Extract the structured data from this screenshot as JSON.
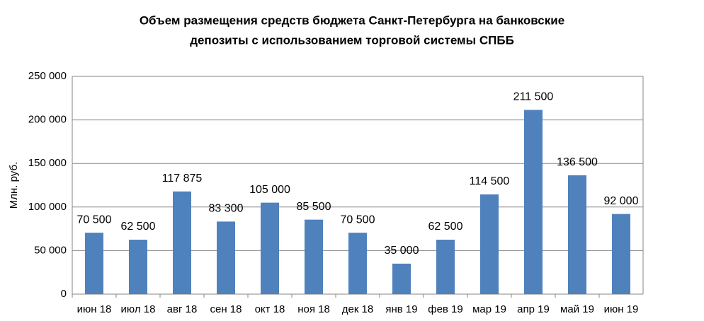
{
  "chart_data": {
    "type": "bar",
    "title": [
      "Объем размещения средств бюджета Санкт-Петербурга на банковские",
      "депозиты с использованием торговой системы СПББ"
    ],
    "y_label": "Млн. руб.",
    "categories": [
      "июн 18",
      "июл 18",
      "авг 18",
      "сен 18",
      "окт 18",
      "ноя 18",
      "дек 18",
      "янв 19",
      "фев 19",
      "мар 19",
      "апр 19",
      "май 19",
      "июн 19"
    ],
    "values": [
      70500,
      62500,
      117875,
      83300,
      105000,
      85500,
      70500,
      35000,
      62500,
      114500,
      211500,
      136500,
      92000
    ],
    "value_labels": [
      "70 500",
      "62 500",
      "117 875",
      "83 300",
      "105 000",
      "85 500",
      "70 500",
      "35 000",
      "62 500",
      "114 500",
      "211 500",
      "136 500",
      "92 000"
    ],
    "color": "#4f81bd",
    "ylim": [
      0,
      250000
    ],
    "yticks": [
      0,
      {
        "value": 50000,
        "label": "50 000"
      },
      {
        "value": 100000,
        "label": "100 000"
      },
      {
        "value": 150000,
        "label": "150 000"
      },
      {
        "value": 200000,
        "label": "200 000"
      },
      {
        "value": 250000,
        "label": "250 000"
      }
    ],
    "grid": true
  }
}
